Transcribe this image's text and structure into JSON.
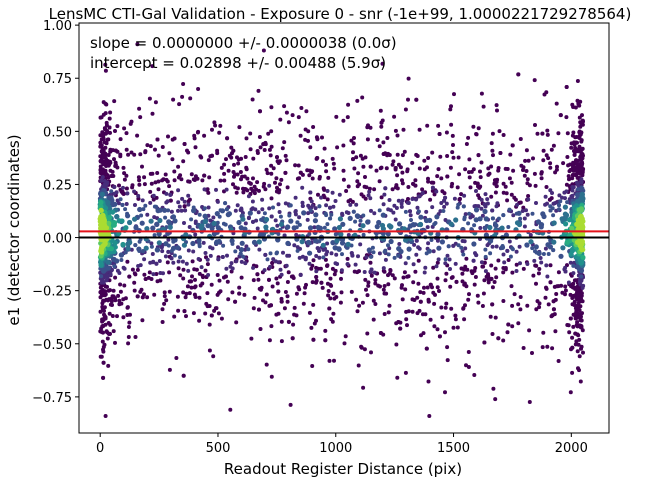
{
  "chart_data": {
    "type": "scatter",
    "title": "LensMC CTI-Gal Validation - Exposure 0 - snr (-1e+99, 1.0000221729278564)",
    "xlabel": "Readout Register Distance (pix)",
    "ylabel": "e1 (detector coordinates)",
    "xlim": [
      -90,
      2160
    ],
    "ylim": [
      -0.92,
      1.01
    ],
    "xticks": [
      0,
      500,
      1000,
      1500,
      2000
    ],
    "xtick_labels": [
      "0",
      "500",
      "1000",
      "1500",
      "2000"
    ],
    "yticks": [
      -0.75,
      -0.5,
      -0.25,
      0.0,
      0.25,
      0.5,
      0.75,
      1.0
    ],
    "ytick_labels": [
      "−0.75",
      "−0.50",
      "−0.25",
      "0.00",
      "0.25",
      "0.50",
      "0.75",
      "1.00"
    ],
    "grid": false,
    "colormap": "viridis (point density)",
    "point_color_low": "#3b1f6b",
    "point_color_high": "#b5de2b",
    "annotations": {
      "slope_line": "slope = 0.0000000 +/- 0.0000038 (0.0σ)",
      "intercept_line": "intercept = 0.02898 +/- 0.00488 (5.9σ)"
    },
    "reference_lines": [
      {
        "label": "zero",
        "y": 0.0,
        "color": "#000000"
      },
      {
        "label": "fit",
        "y": 0.02898,
        "slope": 0.0,
        "color": "#e3141c"
      }
    ],
    "points": {
      "x_range": [
        0,
        2050
      ],
      "y_mean": 0.02898,
      "y_std": 0.26,
      "y_range": [
        -0.84,
        0.91
      ],
      "density": "dense near x≈0 and x≈2050, sparse elsewhere"
    }
  }
}
